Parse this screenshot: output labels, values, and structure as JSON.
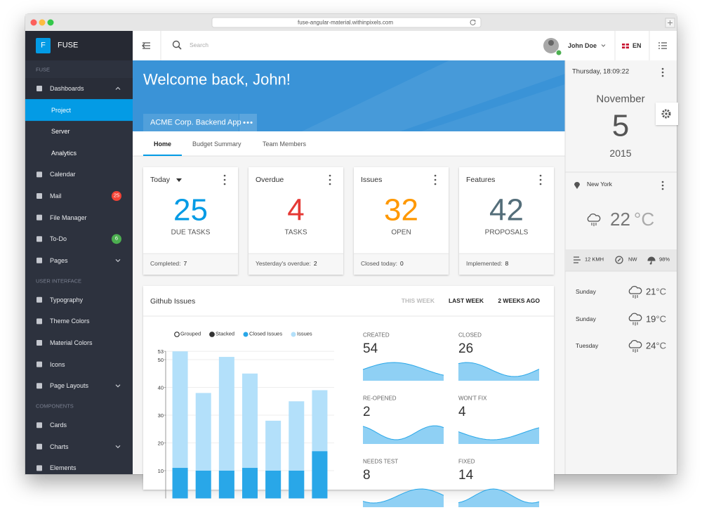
{
  "browser": {
    "url": "fuse-angular-material.withinpixels.com"
  },
  "sidebar": {
    "logo": "F",
    "brand": "FUSE",
    "items": [
      {
        "label": "FUSE",
        "kind": "section"
      },
      {
        "label": "Dashboards",
        "arrow": "up"
      },
      {
        "label": "Project",
        "kind": "sub",
        "active": true
      },
      {
        "label": "Server",
        "kind": "sub"
      },
      {
        "label": "Analytics",
        "kind": "sub"
      },
      {
        "label": "Calendar"
      },
      {
        "label": "Mail",
        "badge": 25,
        "badge_color": "#f44336"
      },
      {
        "label": "File Manager"
      },
      {
        "label": "To-Do",
        "badge": 6,
        "badge_color": "#4caf50"
      },
      {
        "label": "Pages",
        "arrow": "down"
      },
      {
        "label": "USER INTERFACE",
        "kind": "section"
      },
      {
        "label": "Typography"
      },
      {
        "label": "Theme Colors"
      },
      {
        "label": "Material Colors"
      },
      {
        "label": "Icons"
      },
      {
        "label": "Page Layouts",
        "arrow": "down"
      },
      {
        "label": "COMPONENTS",
        "kind": "section"
      },
      {
        "label": "Cards"
      },
      {
        "label": "Charts",
        "arrow": "down"
      },
      {
        "label": "Elements"
      }
    ]
  },
  "topbar": {
    "search": "Search",
    "user": "John Doe",
    "language": "EN"
  },
  "header": {
    "title": "Welcome back, John!",
    "project": "ACME Corp. Backend App"
  },
  "tabs": {
    "items": [
      "Home",
      "Budget Summary",
      "Team Members"
    ],
    "active": 0
  },
  "cards": [
    {
      "title": "Today",
      "dropdown": true,
      "value": 25,
      "caption": "DUE TASKS",
      "color": "#039be5",
      "footer": "Completed:",
      "footer_value": 7
    },
    {
      "title": "Overdue",
      "value": 4,
      "caption": "TASKS",
      "color": "#e53935",
      "footer": "Yesterday's overdue:",
      "footer_value": 2
    },
    {
      "title": "Issues",
      "value": 32,
      "caption": "OPEN",
      "color": "#ff9800",
      "footer": "Closed today:",
      "footer_value": 0
    },
    {
      "title": "Features",
      "value": 42,
      "caption": "PROPOSALS",
      "color": "#546e7a",
      "footer": "Implemented:",
      "footer_value": 8
    }
  ],
  "github": {
    "title": "Github Issues",
    "ranges": [
      "THIS WEEK",
      "LAST WEEK",
      "2 WEEKS AGO"
    ],
    "active_range": 0,
    "modes": [
      "Grouped",
      "Stacked"
    ],
    "stats": [
      {
        "label": "CREATED",
        "value": 54
      },
      {
        "label": "CLOSED",
        "value": 26
      },
      {
        "label": "RE-OPENED",
        "value": 2
      },
      {
        "label": "WON'T FIX",
        "value": 4
      },
      {
        "label": "NEEDS TEST",
        "value": 8
      },
      {
        "label": "FIXED",
        "value": 14
      }
    ]
  },
  "chart_data": {
    "type": "bar",
    "categories": [
      null,
      null,
      null,
      null,
      null,
      null,
      null
    ],
    "series": [
      {
        "name": "Closed Issues",
        "color": "#29a7e8",
        "values": [
          11,
          10,
          10,
          11,
          10,
          10,
          17
        ]
      },
      {
        "name": "Issues",
        "color": "#b3e0fa",
        "values": [
          53,
          38,
          51,
          45,
          28,
          35,
          39
        ]
      }
    ],
    "ylim": [
      0,
      53
    ],
    "yticks": [
      10,
      20,
      30,
      40,
      50,
      53
    ],
    "grid": true
  },
  "widget": {
    "date": {
      "day_time": "Thursday, 18:09:22",
      "month": "November",
      "day": 5,
      "year": 2015
    },
    "weather": {
      "city": "New York",
      "temp": 22,
      "unit": "°C",
      "wind": "12 KMH",
      "direction": "NW",
      "rain": "98%",
      "forecast": [
        {
          "day": "Sunday",
          "temp": 21
        },
        {
          "day": "Sunday",
          "temp": 19
        },
        {
          "day": "Tuesday",
          "temp": 24
        }
      ]
    }
  }
}
